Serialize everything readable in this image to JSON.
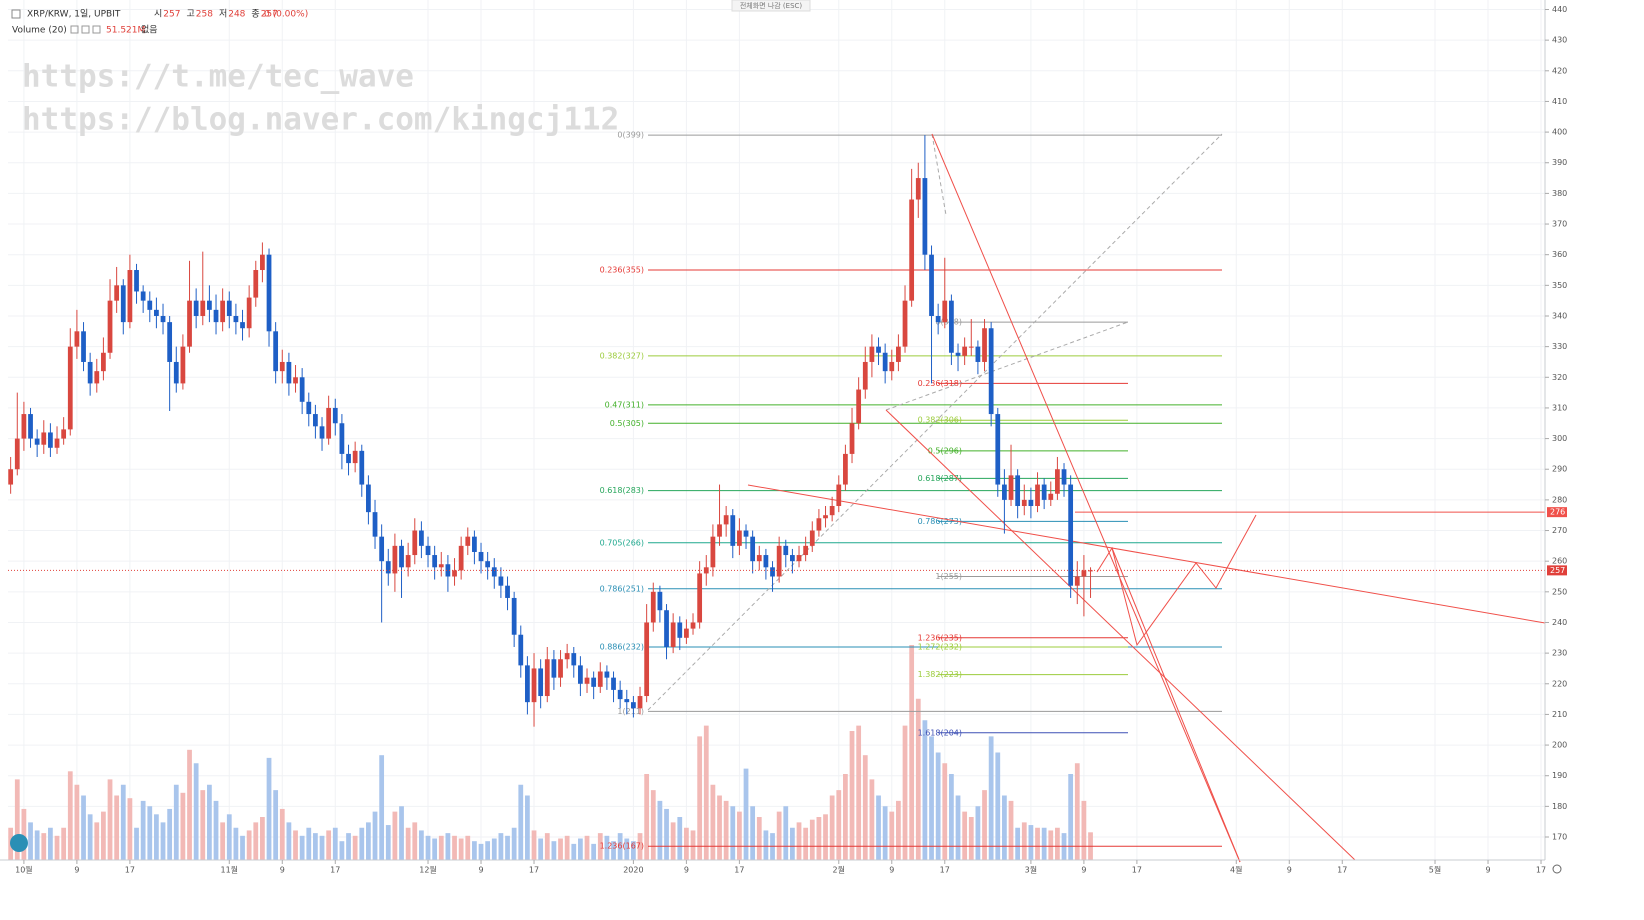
{
  "header": {
    "symbol": "XRP/KRW, 1일, UPBIT",
    "ohlc": [
      {
        "label": "시",
        "value": "257"
      },
      {
        "label": "고",
        "value": "258"
      },
      {
        "label": "저",
        "value": "248"
      },
      {
        "label": "종",
        "value": "257"
      }
    ],
    "change": "0 (0.00%)",
    "indicator": "Volume (20)",
    "volume_label": "51.521M",
    "volume_extra": "없음",
    "fullscreen": "전체화면 나감 (ESC)"
  },
  "watermark": [
    "https://t.me/tec_wave",
    "https://blog.naver.com/kingcj112"
  ],
  "chart_data": {
    "type": "candlestick",
    "ylim": [
      162.5,
      443.1
    ],
    "yticks": [
      170,
      180,
      190,
      200,
      210,
      220,
      230,
      240,
      250,
      260,
      270,
      280,
      290,
      300,
      310,
      320,
      330,
      340,
      350,
      360,
      370,
      380,
      390,
      400,
      410,
      420,
      430,
      440
    ],
    "xlim": [
      -2.4,
      229.6
    ],
    "xticks": [
      {
        "value": 0,
        "label": "10월"
      },
      {
        "value": 8,
        "label": "9"
      },
      {
        "value": 16,
        "label": "17"
      },
      {
        "value": 31,
        "label": "11월"
      },
      {
        "value": 39,
        "label": "9"
      },
      {
        "value": 47,
        "label": "17"
      },
      {
        "value": 61,
        "label": "12월"
      },
      {
        "value": 69,
        "label": "9"
      },
      {
        "value": 77,
        "label": "17"
      },
      {
        "value": 92,
        "label": "2020"
      },
      {
        "value": 100,
        "label": "9"
      },
      {
        "value": 108,
        "label": "17"
      },
      {
        "value": 123,
        "label": "2월"
      },
      {
        "value": 131,
        "label": "9"
      },
      {
        "value": 139,
        "label": "17"
      },
      {
        "value": 152,
        "label": "3월"
      },
      {
        "value": 160,
        "label": "9"
      },
      {
        "value": 168,
        "label": "17"
      },
      {
        "value": 183,
        "label": "4월"
      },
      {
        "value": 191,
        "label": "9"
      },
      {
        "value": 199,
        "label": "17"
      },
      {
        "value": 213,
        "label": "5월"
      },
      {
        "value": 221,
        "label": "9"
      },
      {
        "value": 229,
        "label": "17"
      }
    ],
    "grid": true,
    "up_color": "#d9473f",
    "down_color": "#1e5fc6",
    "vol_up_color": "#f2b9b6",
    "vol_down_color": "#a9c5ec",
    "x_start": -2,
    "candles": [
      [
        285,
        294,
        282,
        290
      ],
      [
        290,
        315,
        288,
        300
      ],
      [
        300,
        312,
        296,
        308
      ],
      [
        308,
        310,
        297,
        300
      ],
      [
        300,
        303,
        294,
        298
      ],
      [
        298,
        306,
        295,
        302
      ],
      [
        302,
        305,
        294,
        297
      ],
      [
        297,
        304,
        295,
        300
      ],
      [
        300,
        307,
        298,
        303
      ],
      [
        303,
        336,
        301,
        330
      ],
      [
        330,
        342,
        326,
        335
      ],
      [
        335,
        338,
        322,
        325
      ],
      [
        325,
        328,
        314,
        318
      ],
      [
        318,
        326,
        315,
        322
      ],
      [
        322,
        333,
        319,
        328
      ],
      [
        328,
        352,
        326,
        345
      ],
      [
        345,
        356,
        341,
        350
      ],
      [
        350,
        352,
        334,
        338
      ],
      [
        338,
        360,
        336,
        355
      ],
      [
        355,
        357,
        344,
        348
      ],
      [
        348,
        350,
        341,
        345
      ],
      [
        345,
        348,
        338,
        342
      ],
      [
        342,
        346,
        336,
        340
      ],
      [
        340,
        344,
        334,
        338
      ],
      [
        338,
        340,
        309,
        325
      ],
      [
        325,
        330,
        315,
        318
      ],
      [
        318,
        334,
        316,
        330
      ],
      [
        330,
        358,
        328,
        345
      ],
      [
        345,
        349,
        336,
        340
      ],
      [
        340,
        361,
        337,
        345
      ],
      [
        345,
        350,
        338,
        342
      ],
      [
        342,
        347,
        334,
        338
      ],
      [
        338,
        349,
        335,
        345
      ],
      [
        345,
        348,
        336,
        340
      ],
      [
        340,
        344,
        334,
        338
      ],
      [
        338,
        342,
        332,
        336
      ],
      [
        336,
        350,
        333,
        346
      ],
      [
        346,
        358,
        343,
        355
      ],
      [
        355,
        364,
        351,
        360
      ],
      [
        360,
        362,
        330,
        335
      ],
      [
        335,
        338,
        318,
        322
      ],
      [
        322,
        329,
        318,
        325
      ],
      [
        325,
        328,
        314,
        318
      ],
      [
        318,
        324,
        315,
        320
      ],
      [
        320,
        323,
        308,
        312
      ],
      [
        312,
        315,
        304,
        308
      ],
      [
        308,
        311,
        300,
        304
      ],
      [
        304,
        307,
        296,
        300
      ],
      [
        300,
        314,
        298,
        310
      ],
      [
        310,
        313,
        301,
        305
      ],
      [
        305,
        308,
        290,
        295
      ],
      [
        295,
        298,
        288,
        292
      ],
      [
        292,
        299,
        289,
        296
      ],
      [
        296,
        298,
        281,
        285
      ],
      [
        285,
        288,
        272,
        276
      ],
      [
        276,
        280,
        264,
        268
      ],
      [
        268,
        272,
        240,
        260
      ],
      [
        260,
        264,
        252,
        256
      ],
      [
        256,
        269,
        250,
        265
      ],
      [
        265,
        267,
        248,
        258
      ],
      [
        258,
        266,
        255,
        262
      ],
      [
        262,
        274,
        259,
        270
      ],
      [
        270,
        273,
        261,
        265
      ],
      [
        265,
        268,
        258,
        262
      ],
      [
        262,
        265,
        254,
        258
      ],
      [
        258,
        263,
        255,
        259
      ],
      [
        259,
        262,
        250,
        255
      ],
      [
        255,
        261,
        252,
        257
      ],
      [
        257,
        268,
        254,
        265
      ],
      [
        265,
        271,
        262,
        268
      ],
      [
        268,
        270,
        259,
        263
      ],
      [
        263,
        266,
        256,
        260
      ],
      [
        260,
        263,
        254,
        258
      ],
      [
        258,
        261,
        251,
        255
      ],
      [
        255,
        258,
        248,
        252
      ],
      [
        252,
        255,
        244,
        248
      ],
      [
        248,
        250,
        232,
        236
      ],
      [
        236,
        239,
        222,
        226
      ],
      [
        226,
        229,
        210,
        214
      ],
      [
        214,
        230,
        206,
        225
      ],
      [
        225,
        228,
        212,
        216
      ],
      [
        216,
        232,
        214,
        228
      ],
      [
        228,
        231,
        218,
        222
      ],
      [
        222,
        231,
        219,
        228
      ],
      [
        228,
        233,
        225,
        230
      ],
      [
        230,
        232,
        222,
        226
      ],
      [
        226,
        229,
        216,
        220
      ],
      [
        220,
        225,
        217,
        222
      ],
      [
        222,
        224,
        215,
        219
      ],
      [
        219,
        227,
        217,
        224
      ],
      [
        224,
        226,
        218,
        222
      ],
      [
        222,
        224,
        214,
        218
      ],
      [
        218,
        221,
        212,
        215
      ],
      [
        215,
        218,
        210,
        214
      ],
      [
        214,
        216,
        209,
        212
      ],
      [
        212,
        219,
        210,
        216
      ],
      [
        216,
        246,
        214,
        240
      ],
      [
        240,
        253,
        237,
        250
      ],
      [
        250,
        252,
        240,
        244
      ],
      [
        244,
        246,
        228,
        232
      ],
      [
        232,
        243,
        230,
        240
      ],
      [
        240,
        242,
        231,
        235
      ],
      [
        235,
        241,
        233,
        238
      ],
      [
        238,
        243,
        236,
        240
      ],
      [
        240,
        260,
        238,
        256
      ],
      [
        256,
        262,
        252,
        258
      ],
      [
        258,
        272,
        255,
        268
      ],
      [
        268,
        285,
        265,
        272
      ],
      [
        272,
        278,
        268,
        275
      ],
      [
        275,
        277,
        261,
        265
      ],
      [
        265,
        274,
        262,
        270
      ],
      [
        270,
        272,
        264,
        268
      ],
      [
        268,
        270,
        256,
        260
      ],
      [
        260,
        265,
        257,
        262
      ],
      [
        262,
        264,
        254,
        258
      ],
      [
        258,
        260,
        250,
        255
      ],
      [
        255,
        268,
        253,
        265
      ],
      [
        265,
        267,
        258,
        262
      ],
      [
        262,
        264,
        256,
        260
      ],
      [
        260,
        265,
        258,
        262
      ],
      [
        262,
        268,
        260,
        265
      ],
      [
        265,
        273,
        263,
        270
      ],
      [
        270,
        277,
        268,
        274
      ],
      [
        274,
        278,
        271,
        275
      ],
      [
        275,
        281,
        273,
        278
      ],
      [
        278,
        288,
        276,
        285
      ],
      [
        285,
        298,
        283,
        295
      ],
      [
        295,
        310,
        292,
        305
      ],
      [
        305,
        320,
        303,
        316
      ],
      [
        316,
        330,
        313,
        325
      ],
      [
        325,
        334,
        320,
        330
      ],
      [
        330,
        333,
        324,
        328
      ],
      [
        328,
        331,
        318,
        322
      ],
      [
        322,
        329,
        319,
        325
      ],
      [
        325,
        334,
        322,
        330
      ],
      [
        330,
        350,
        328,
        345
      ],
      [
        345,
        388,
        343,
        378
      ],
      [
        378,
        390,
        372,
        385
      ],
      [
        385,
        399,
        355,
        360
      ],
      [
        360,
        363,
        318,
        340
      ],
      [
        340,
        344,
        334,
        338
      ],
      [
        338,
        359,
        336,
        345
      ],
      [
        345,
        347,
        324,
        328
      ],
      [
        328,
        331,
        322,
        327
      ],
      [
        327,
        333,
        324,
        330
      ],
      [
        330,
        339,
        327,
        330
      ],
      [
        330,
        332,
        321,
        325
      ],
      [
        325,
        339,
        322,
        336
      ],
      [
        336,
        338,
        304,
        308
      ],
      [
        308,
        310,
        281,
        285
      ],
      [
        285,
        290,
        269,
        280
      ],
      [
        280,
        298,
        278,
        288
      ],
      [
        288,
        290,
        274,
        278
      ],
      [
        278,
        285,
        275,
        280
      ],
      [
        280,
        284,
        274,
        278
      ],
      [
        278,
        289,
        276,
        285
      ],
      [
        285,
        287,
        277,
        280
      ],
      [
        280,
        286,
        278,
        282
      ],
      [
        282,
        294,
        280,
        290
      ],
      [
        290,
        292,
        281,
        285
      ],
      [
        285,
        288,
        248,
        252
      ],
      [
        252,
        260,
        246,
        255
      ],
      [
        255,
        262,
        242,
        257
      ],
      [
        257,
        258,
        248,
        257
      ]
    ],
    "vlim": [
      0,
      400
    ],
    "volumes": [
      60,
      150,
      95,
      70,
      55,
      50,
      60,
      45,
      60,
      165,
      140,
      120,
      85,
      70,
      90,
      150,
      120,
      140,
      115,
      60,
      110,
      100,
      85,
      70,
      95,
      140,
      125,
      205,
      180,
      130,
      140,
      110,
      70,
      85,
      60,
      45,
      55,
      70,
      80,
      190,
      130,
      95,
      70,
      55,
      45,
      60,
      50,
      45,
      55,
      60,
      35,
      50,
      45,
      60,
      70,
      90,
      195,
      65,
      90,
      100,
      60,
      70,
      55,
      45,
      40,
      45,
      50,
      45,
      40,
      45,
      35,
      30,
      35,
      40,
      50,
      45,
      60,
      140,
      120,
      55,
      40,
      50,
      35,
      40,
      45,
      30,
      40,
      45,
      30,
      50,
      45,
      35,
      50,
      40,
      35,
      50,
      160,
      130,
      110,
      95,
      70,
      80,
      60,
      55,
      230,
      250,
      140,
      120,
      110,
      100,
      90,
      170,
      100,
      80,
      55,
      50,
      90,
      100,
      60,
      70,
      60,
      75,
      80,
      85,
      120,
      130,
      160,
      240,
      250,
      195,
      150,
      120,
      100,
      90,
      110,
      250,
      400,
      300,
      260,
      230,
      200,
      180,
      160,
      120,
      90,
      80,
      100,
      130,
      230,
      200,
      120,
      110,
      60,
      70,
      65,
      60,
      60,
      55,
      60,
      50,
      160,
      180,
      110,
      51.521
    ],
    "fib_a": [
      {
        "label": "0(399)",
        "value": 399,
        "color": "#9a9a9a"
      },
      {
        "label": "0.236(355)",
        "value": 355,
        "color": "#e53935"
      },
      {
        "label": "0.382(327)",
        "value": 327,
        "color": "#9ccc3c"
      },
      {
        "label": "0.47(311)",
        "value": 311,
        "color": "#43b02a"
      },
      {
        "label": "0.5(305)",
        "value": 305,
        "color": "#43b02a"
      },
      {
        "label": "0.618(283)",
        "value": 283,
        "color": "#26a65b"
      },
      {
        "label": "0.705(266)",
        "value": 266,
        "color": "#1fa88e"
      },
      {
        "label": "0.786(251)",
        "value": 251,
        "color": "#2a8fb5"
      },
      {
        "label": "0.886(232)",
        "value": 232,
        "color": "#2a8fb5"
      },
      {
        "label": "1(211)",
        "value": 211,
        "color": "#9a9a9a"
      },
      {
        "label": "1.236(167)",
        "value": 167,
        "color": "#e53935"
      }
    ],
    "fib_b": [
      {
        "label": "0(338)",
        "value": 338,
        "color": "#9a9a9a"
      },
      {
        "label": "0.236(318)",
        "value": 318,
        "color": "#e53935"
      },
      {
        "label": "0.382(306)",
        "value": 306,
        "color": "#9ccc3c"
      },
      {
        "label": "0.5(296)",
        "value": 296,
        "color": "#43b02a"
      },
      {
        "label": "0.618(287)",
        "value": 287,
        "color": "#26a65b"
      },
      {
        "label": "0.786(273)",
        "value": 273,
        "color": "#2a8fb5"
      },
      {
        "label": "1(255)",
        "value": 255,
        "color": "#9a9a9a"
      },
      {
        "label": "1.236(235)",
        "value": 235,
        "color": "#e53935"
      },
      {
        "label": "1.272(232)",
        "value": 232,
        "color": "#9ccc3c"
      },
      {
        "label": "1.382(223)",
        "value": 223,
        "color": "#9ccc3c"
      },
      {
        "label": "1.618(204)",
        "value": 204,
        "color": "#3f51b5"
      }
    ],
    "alert_level": 276,
    "current_price": 257
  }
}
